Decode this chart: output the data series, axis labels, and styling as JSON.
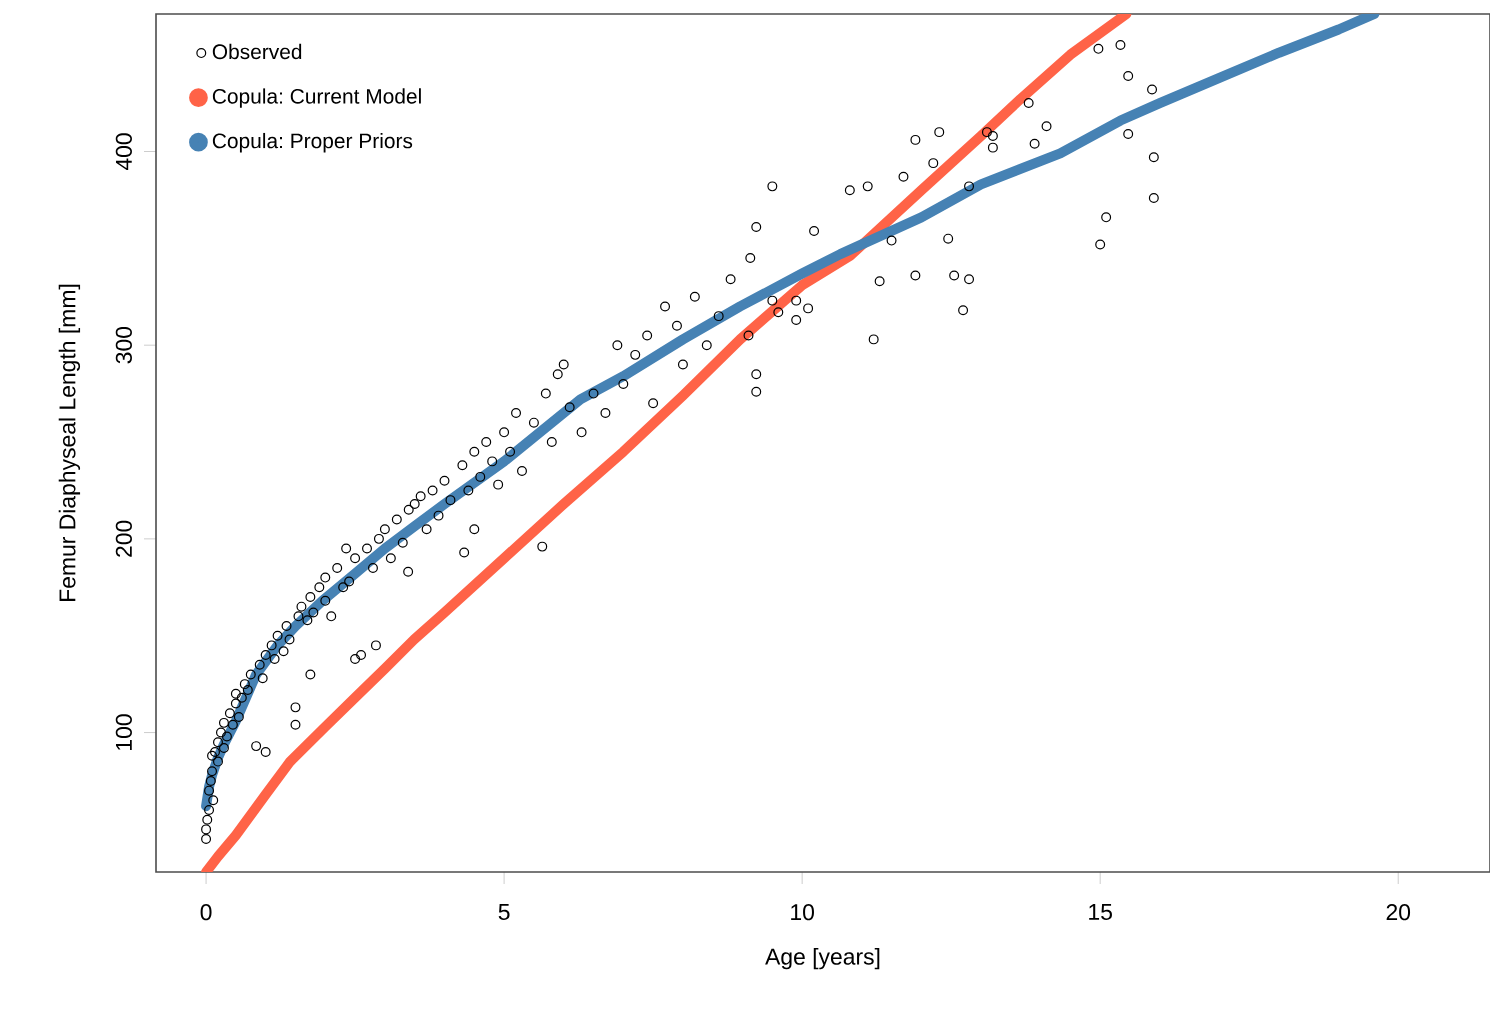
{
  "chart_data": {
    "type": "scatter",
    "xlabel": "Age [years]",
    "ylabel": "Femur Diaphyseal Length [mm]",
    "xlim": [
      -0.84,
      21.54
    ],
    "ylim": [
      28,
      471
    ],
    "xticks": [
      0,
      5,
      10,
      15,
      20
    ],
    "yticks": [
      100,
      200,
      300,
      400
    ],
    "legend": "top left",
    "series": [
      {
        "name": "Observed",
        "marker": "circle",
        "color": "#000000",
        "x": [
          0,
          0,
          0.02,
          0.05,
          0.05,
          0.08,
          0.1,
          0.1,
          0.12,
          0.15,
          0.2,
          0.2,
          0.25,
          0.3,
          0.3,
          0.35,
          0.4,
          0.45,
          0.5,
          0.5,
          0.55,
          0.6,
          0.65,
          0.7,
          0.75,
          0.84,
          0.9,
          0.95,
          1.0,
          1.0,
          1.1,
          1.15,
          1.2,
          1.3,
          1.35,
          1.4,
          1.5,
          1.5,
          1.55,
          1.6,
          1.7,
          1.75,
          1.75,
          1.8,
          1.9,
          2.0,
          2.0,
          2.1,
          2.2,
          2.3,
          2.35,
          2.4,
          2.5,
          2.5,
          2.6,
          2.7,
          2.8,
          2.85,
          2.9,
          3.0,
          3.1,
          3.2,
          3.3,
          3.39,
          3.4,
          3.5,
          3.6,
          3.7,
          3.8,
          3.9,
          4.0,
          4.1,
          4.33,
          4.3,
          4.4,
          4.5,
          4.5,
          4.6,
          4.7,
          4.8,
          4.9,
          5.0,
          5.1,
          5.2,
          5.3,
          5.5,
          5.64,
          5.7,
          5.8,
          5.9,
          6.0,
          6.1,
          6.3,
          6.5,
          6.7,
          6.9,
          7.0,
          7.2,
          7.4,
          7.5,
          7.7,
          7.9,
          8.0,
          8.2,
          8.4,
          8.6,
          8.8,
          9.1,
          9.13,
          9.23,
          9.23,
          9.23,
          9.5,
          9.5,
          9.6,
          9.9,
          9.9,
          10.1,
          10.2,
          10.8,
          11.1,
          11.2,
          11.3,
          11.5,
          11.7,
          11.9,
          11.9,
          12.2,
          12.3,
          12.45,
          12.55,
          12.7,
          12.8,
          12.8,
          13.1,
          13.2,
          13.2,
          13.8,
          13.9,
          14.1,
          14.97,
          15.0,
          15.1,
          15.34,
          15.47,
          15.47,
          15.87,
          15.9,
          15.9
        ],
        "values": [
          50,
          45,
          55,
          60,
          70,
          75,
          80,
          88,
          65,
          90,
          95,
          85,
          100,
          105,
          92,
          98,
          110,
          104,
          115,
          120,
          108,
          118,
          125,
          122,
          130,
          93,
          135,
          128,
          140,
          90,
          145,
          138,
          150,
          142,
          155,
          148,
          113,
          104,
          160,
          165,
          158,
          170,
          130,
          162,
          175,
          168,
          180,
          160,
          185,
          175,
          195,
          178,
          190,
          138,
          140,
          195,
          185,
          145,
          200,
          205,
          190,
          210,
          198,
          183,
          215,
          218,
          222,
          205,
          225,
          212,
          230,
          220,
          193,
          238,
          225,
          245,
          205,
          232,
          250,
          240,
          228,
          255,
          245,
          265,
          235,
          260,
          196,
          275,
          250,
          285,
          290,
          268,
          255,
          275,
          265,
          300,
          280,
          295,
          305,
          270,
          320,
          310,
          290,
          325,
          300,
          315,
          334,
          305,
          345,
          361,
          285,
          276,
          382,
          323,
          317,
          323,
          313,
          319,
          359,
          380,
          382,
          303,
          333,
          354,
          387,
          406,
          336,
          394,
          410,
          355,
          336,
          318,
          334,
          382,
          410,
          408,
          402,
          425,
          404,
          413,
          453,
          352,
          366,
          455,
          409,
          439,
          432,
          397,
          376
        ]
      },
      {
        "name": "Copula: Current Model",
        "type": "line",
        "color": "#ff6347",
        "x": [
          0,
          0.2,
          0.5,
          1,
          1.41,
          2,
          2.5,
          3,
          3.49,
          4,
          5,
          6,
          7,
          8,
          8.96,
          10,
          10.8,
          12,
          13,
          13.66,
          14.5,
          15.44
        ],
        "values": [
          28,
          36,
          47,
          68,
          85,
          103,
          118,
          133,
          148,
          162,
          190,
          218,
          245,
          274,
          303,
          331,
          346,
          380,
          408,
          427,
          450,
          471
        ]
      },
      {
        "name": "Copula: Proper Priors",
        "type": "line",
        "color": "#4682b4",
        "x": [
          0,
          0.05,
          0.1,
          0.2,
          0.3,
          0.5,
          0.84,
          1.2,
          1.5,
          1.95,
          2.5,
          3,
          3.52,
          4,
          5,
          6.28,
          7,
          8,
          8.96,
          10,
          10.64,
          12,
          13,
          14.33,
          15.34,
          16,
          17,
          18,
          19,
          19.6
        ],
        "values": [
          62,
          72,
          78,
          87,
          94,
          106,
          130,
          145,
          155,
          168,
          182,
          195,
          207,
          218,
          240,
          272,
          284,
          303,
          320,
          337,
          347,
          366,
          383,
          399,
          416,
          425,
          438,
          451,
          463,
          471
        ]
      }
    ]
  }
}
